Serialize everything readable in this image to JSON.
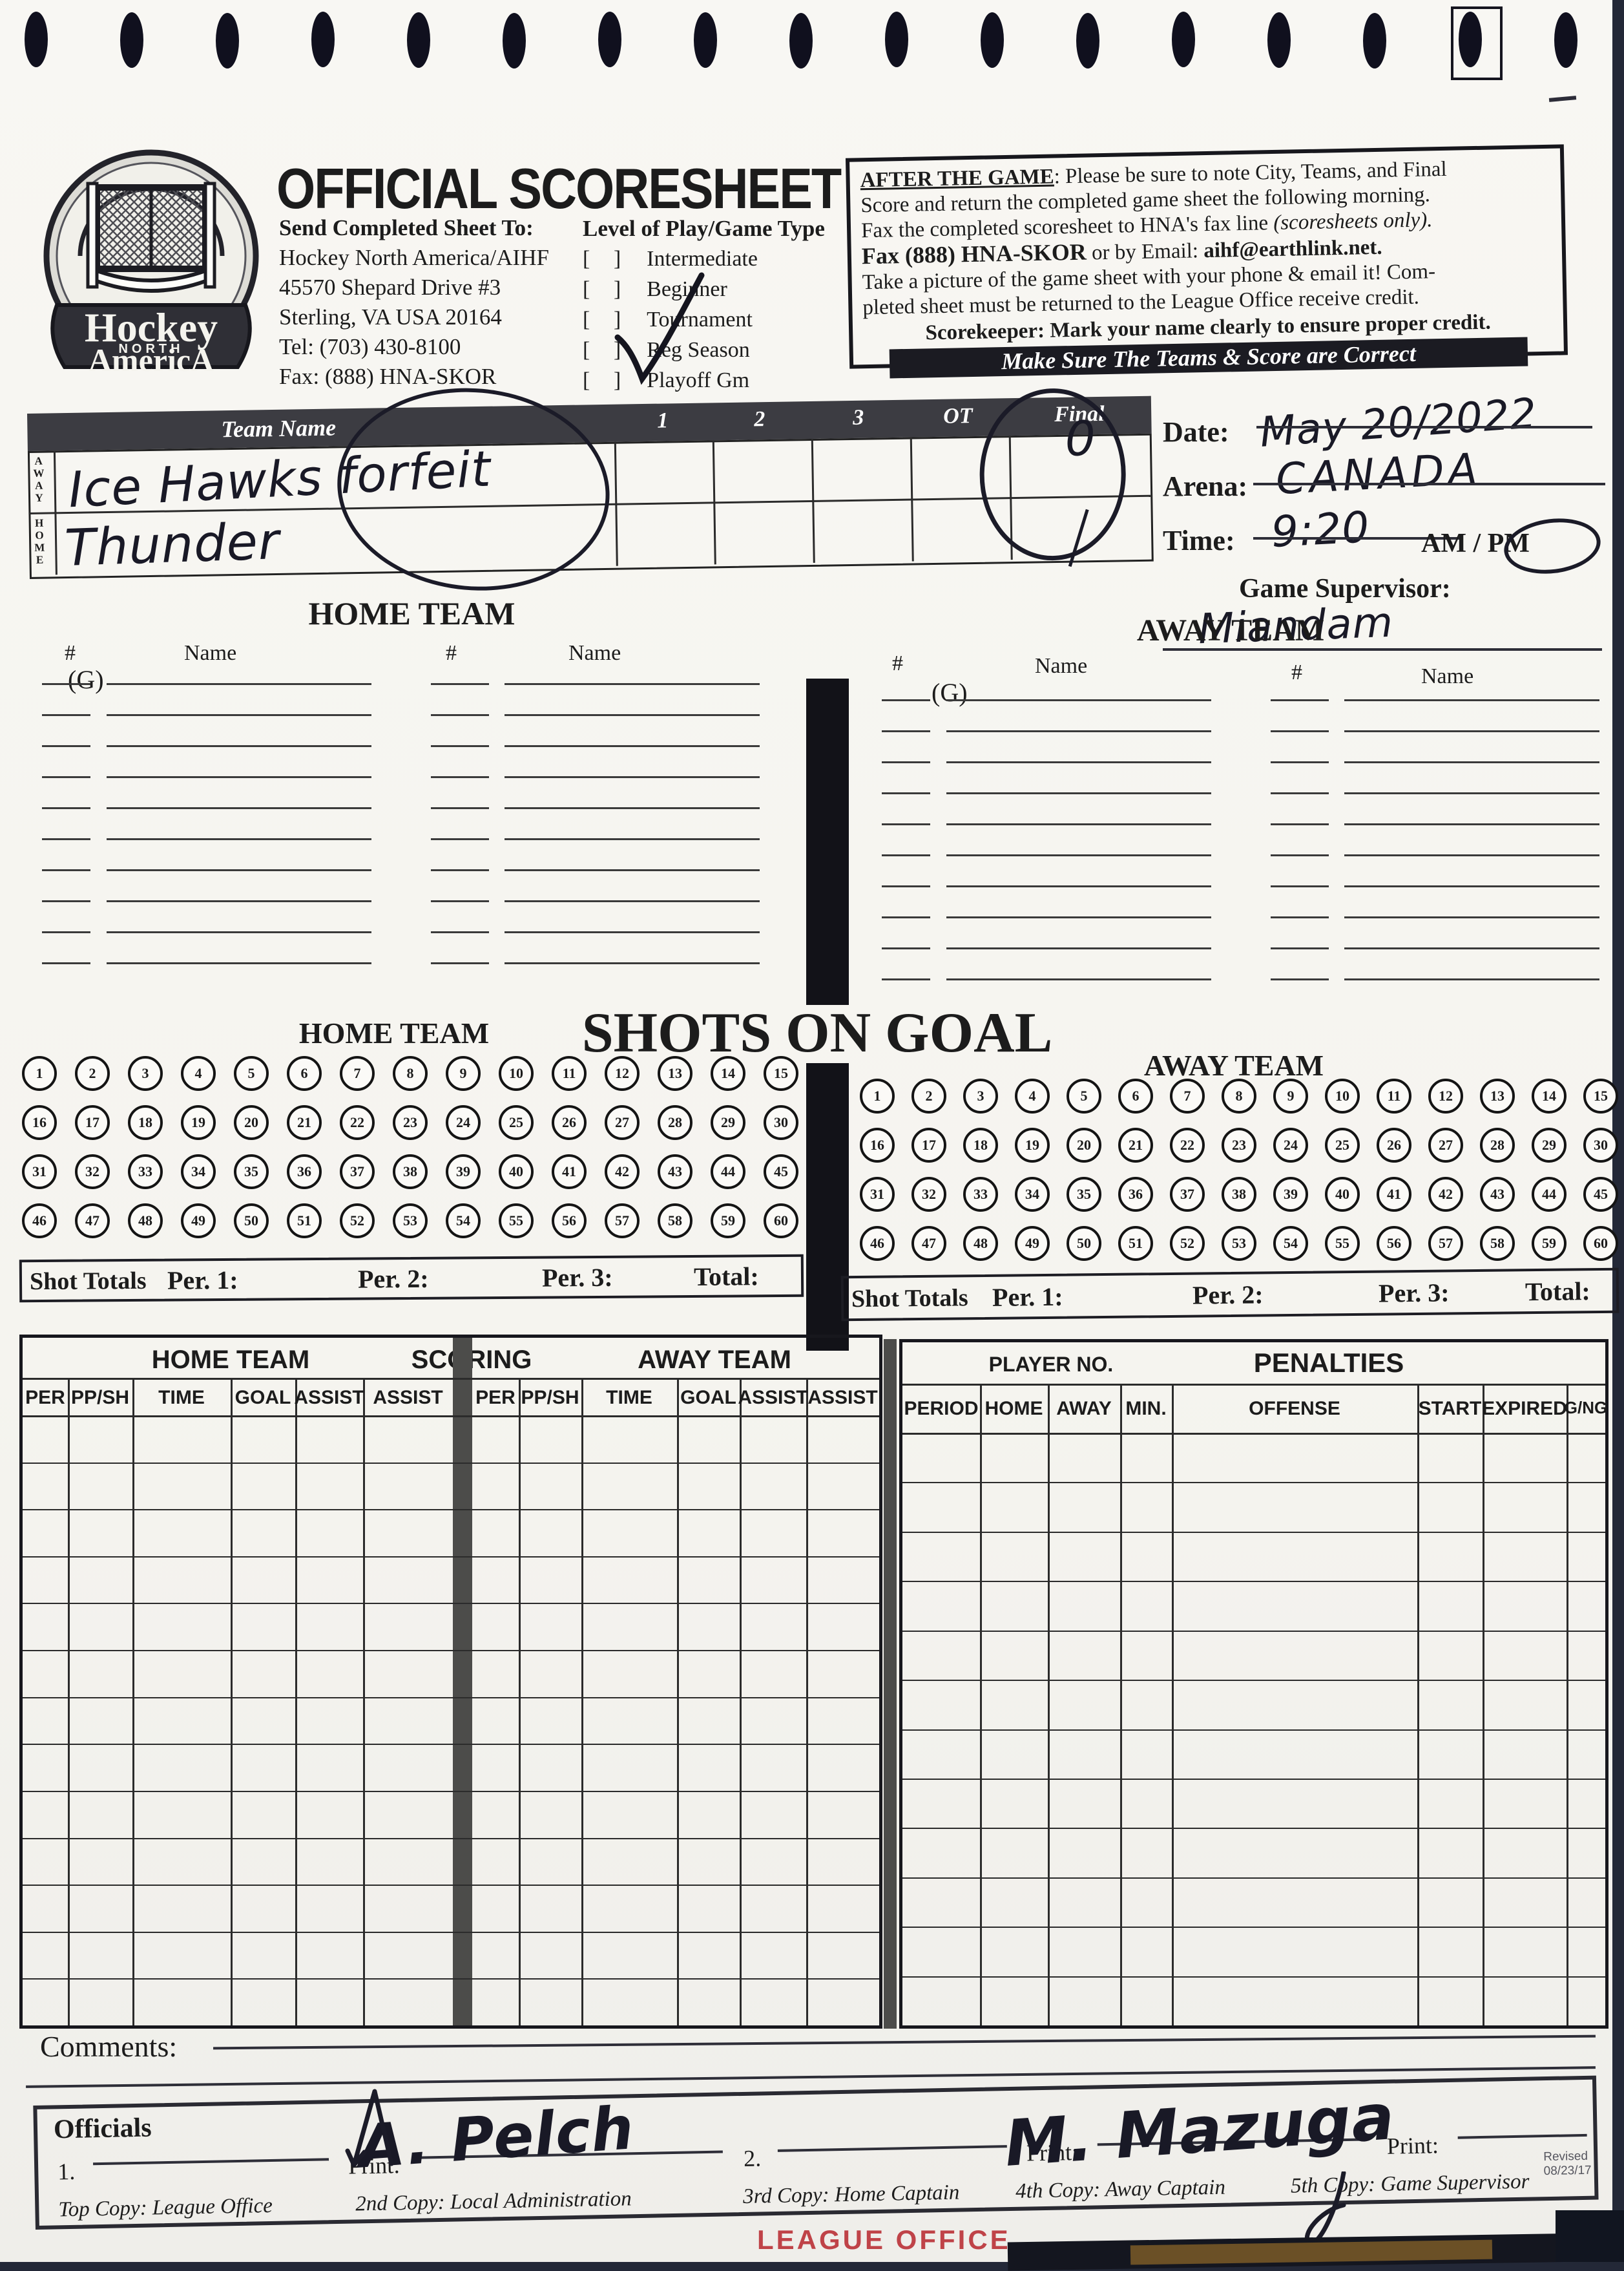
{
  "header": {
    "logo": {
      "line1": "Hockey",
      "line2": "NORTH",
      "line3": "AmericA"
    },
    "title": "OFFICIAL SCORESHEET",
    "send_to": {
      "label": "Send Completed Sheet To:",
      "lines": [
        "Hockey North America/AIHF",
        "45570 Shepard Drive #3",
        "Sterling, VA USA 20164",
        "Tel: (703) 430-8100",
        "Fax: (888) HNA-SKOR"
      ]
    },
    "level_of_play": {
      "label": "Level of Play/Game Type",
      "options": [
        {
          "label": "Intermediate",
          "checked": false
        },
        {
          "label": "Beginner",
          "checked": false
        },
        {
          "label": "Tournament",
          "checked": false
        },
        {
          "label": "Reg Season",
          "checked": true
        },
        {
          "label": "Playoff Gm",
          "checked": false
        }
      ]
    },
    "after_game": {
      "heading": "AFTER THE GAME",
      "line1rest": ": Please be sure to note  City, Teams, and Final",
      "line2": "Score and return the completed game sheet the following morning.",
      "line3a": "Fax the completed scoresheet to HNA's fax line ",
      "line3i": "(scoresheets only).",
      "fax_bold": "Fax (888) HNA-SKOR",
      "line4mid": "  or by Email:  ",
      "email_bold": "aihf@earthlink.net.",
      "line5": "Take a picture of the game sheet with your phone & email it!  Com-",
      "line6": "pleted sheet must be returned to the League Office receive credit.",
      "scorekeeper": "Scorekeeper: Mark your name clearly to ensure proper credit.",
      "banner": "Make Sure The Teams & Score are Correct"
    }
  },
  "game_info": {
    "date_label": "Date:",
    "date_value": "May 20/2022",
    "arena_label": "Arena:",
    "arena_value": "CANADA",
    "time_label": "Time:",
    "time_value": "9:20",
    "ampm": "AM / PM",
    "ampm_circled": "PM",
    "supervisor_label": "Game Supervisor:",
    "supervisor_value": "Miandam"
  },
  "score_table": {
    "team_header": "Team Name",
    "period_cols": [
      "1",
      "2",
      "3",
      "OT",
      "Final"
    ],
    "rows": [
      {
        "side": "AWAY",
        "team": "Ice Hawks forfeit",
        "final": "0"
      },
      {
        "side": "HOME",
        "team": "Thunder",
        "final": "1"
      }
    ]
  },
  "roster": {
    "home_title": "HOME TEAM",
    "away_title": "AWAY TEAM",
    "num_label": "#",
    "name_label": "Name",
    "goalie_label": "(G)",
    "rows_per_column": 10
  },
  "shots": {
    "title": "SHOTS ON GOAL",
    "home_label": "HOME TEAM",
    "away_label": "AWAY TEAM",
    "numbers": [
      1,
      2,
      3,
      4,
      5,
      6,
      7,
      8,
      9,
      10,
      11,
      12,
      13,
      14,
      15,
      16,
      17,
      18,
      19,
      20,
      21,
      22,
      23,
      24,
      25,
      26,
      27,
      28,
      29,
      30,
      31,
      32,
      33,
      34,
      35,
      36,
      37,
      38,
      39,
      40,
      41,
      42,
      43,
      44,
      45,
      46,
      47,
      48,
      49,
      50,
      51,
      52,
      53,
      54,
      55,
      56,
      57,
      58,
      59,
      60
    ],
    "totals": {
      "label": "Shot Totals",
      "per1": "Per. 1:",
      "per2": "Per. 2:",
      "per3": "Per. 3:",
      "total": "Total:"
    }
  },
  "scoring": {
    "title": "SCORING",
    "home_label": "HOME TEAM",
    "away_label": "AWAY TEAM",
    "columns": [
      "PER",
      "PP/SH",
      "TIME",
      "GOAL",
      "ASSIST",
      "ASSIST"
    ]
  },
  "penalties": {
    "title": "PENALTIES",
    "player_no_label": "PLAYER NO.",
    "columns": [
      "PERIOD",
      "HOME",
      "AWAY",
      "MIN.",
      "OFFENSE",
      "START",
      "EXPIRED",
      "G/NG"
    ]
  },
  "comments_label": "Comments:",
  "officials": {
    "label": "Officials",
    "one": "1.",
    "two": "2.",
    "print_label": "Print:",
    "signature1": "A. Pelch",
    "signature2": "M. Mazuga",
    "revised1": "Revised",
    "revised2": "08/23/17"
  },
  "footer": {
    "copies": [
      "Top Copy: League Office",
      "2nd Copy: Local Administration",
      "3rd Copy: Home Captain",
      "4th Copy: Away Captain",
      "5th Copy: Game Supervisor"
    ],
    "stamp": "LEAGUE OFFICE"
  }
}
